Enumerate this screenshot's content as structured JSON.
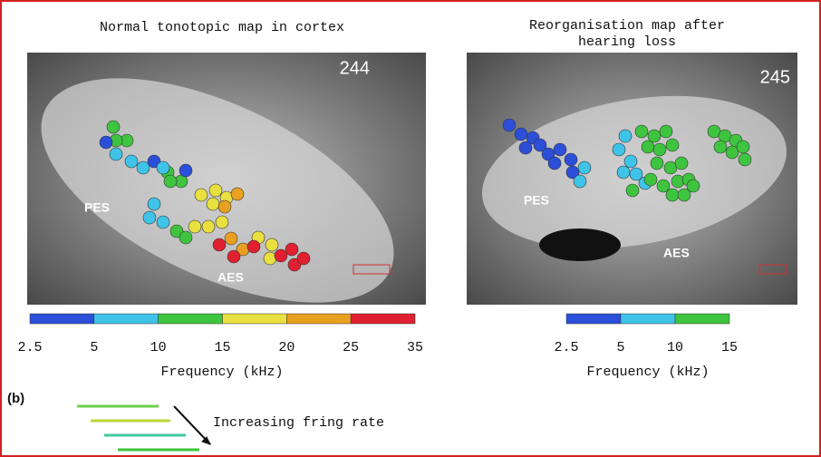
{
  "panel_a": {
    "left": {
      "title": "Normal tonotopic map in cortex",
      "id": "244",
      "labels": [
        "PES",
        "AES"
      ],
      "scale": {
        "ticks": [
          "2.5",
          "5",
          "10",
          "15",
          "20",
          "25",
          "35"
        ],
        "label": "Frequency (kHz)"
      }
    },
    "right": {
      "title": [
        "Reorganisation map after",
        "hearing loss"
      ],
      "id": "245",
      "labels": [
        "PES",
        "AES"
      ],
      "scale": {
        "ticks": [
          "2.5",
          "5",
          "10",
          "15"
        ],
        "label": "Frequency (kHz)"
      }
    }
  },
  "panel_b": {
    "label": "(b)",
    "caption": "Increasing fring rate"
  }
}
